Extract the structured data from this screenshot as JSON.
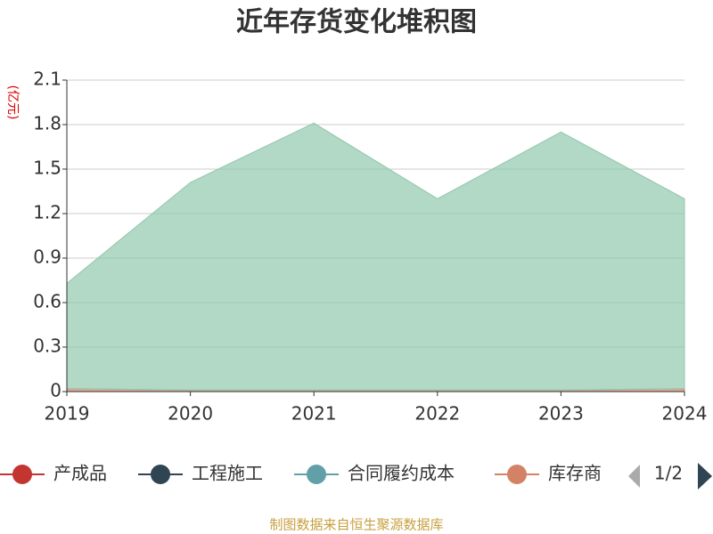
{
  "chart_data": {
    "type": "area",
    "stacked": true,
    "title": "近年存货变化堆积图",
    "y_label": "(亿元)",
    "categories": [
      "2019",
      "2020",
      "2021",
      "2022",
      "2023",
      "2024"
    ],
    "series": [
      {
        "name": "产成品",
        "color": "#c23531",
        "values": [
          0,
          0,
          0,
          0,
          0,
          0
        ]
      },
      {
        "name": "工程施工",
        "color": "#2f4554",
        "values": [
          0,
          0,
          0,
          0,
          0,
          0
        ]
      },
      {
        "name": "合同履约成本",
        "color": "#61a0a8",
        "values": [
          0,
          0,
          0,
          0,
          0,
          0
        ]
      },
      {
        "name": "库存商",
        "color": "#d48265",
        "values": [
          0.02,
          0.01,
          0.01,
          0.01,
          0.01,
          0.02
        ]
      },
      {
        "color": "#91c7ae",
        "values": [
          0.71,
          1.4,
          1.8,
          1.29,
          1.74,
          1.28
        ]
      }
    ],
    "ylim": [
      0,
      2.1
    ],
    "yticks": [
      0,
      0.3,
      0.6,
      0.9,
      1.2,
      1.5,
      1.8,
      2.1
    ],
    "grid": true,
    "legend_page": "1/2",
    "source": "制图数据来自恒生聚源数据库"
  }
}
